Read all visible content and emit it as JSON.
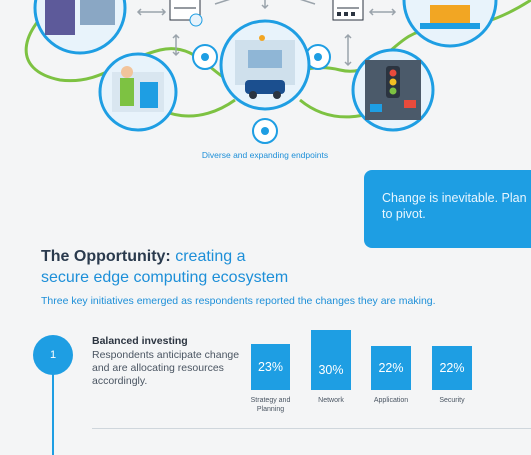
{
  "top": {
    "endpoints_caption": "Diverse and expanding endpoints"
  },
  "callout": {
    "text": "Change is inevitable. Plan to pivot."
  },
  "opportunity": {
    "title_bold": "The Opportunity:",
    "title_rest_1": "creating a",
    "title_line_2": "secure edge computing ecosystem",
    "description": "Three key initiatives emerged as respondents reported the changes they are making."
  },
  "initiative": {
    "number": "1",
    "title": "Balanced investing",
    "body": "Respondents anticipate change and are allocating resources accordingly.",
    "stats": [
      {
        "value": "23%",
        "label": "Strategy and Planning"
      },
      {
        "value": "30%",
        "label": "Network"
      },
      {
        "value": "22%",
        "label": "Application"
      },
      {
        "value": "22%",
        "label": "Security"
      }
    ]
  },
  "colors": {
    "accent_blue": "#1e9ee3",
    "accent_green": "#7dc242",
    "title_dark": "#2a3a4d"
  }
}
